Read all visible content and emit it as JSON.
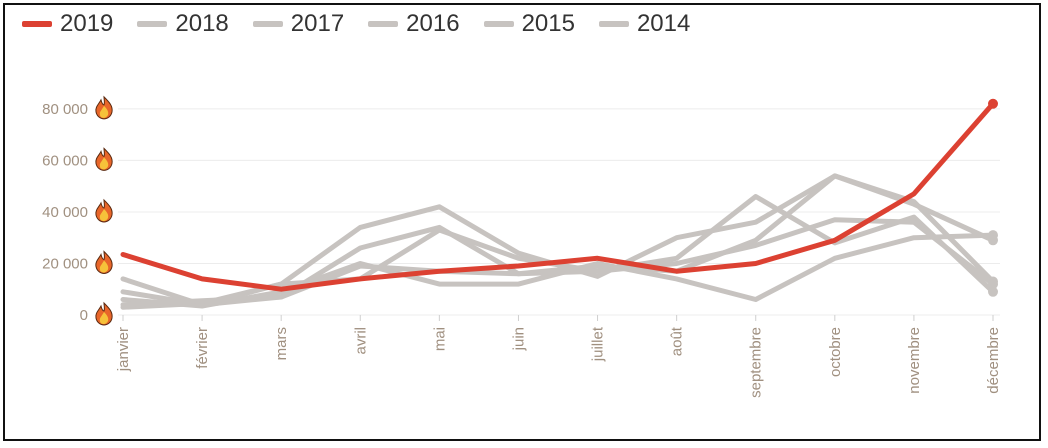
{
  "chart_data": {
    "type": "line",
    "title": "",
    "xlabel": "",
    "ylabel": "",
    "categories": [
      "janvier",
      "février",
      "mars",
      "avril",
      "mai",
      "juin",
      "juillet",
      "août",
      "septembre",
      "octobre",
      "novembre",
      "décembre"
    ],
    "y_ticks": [
      {
        "value": 0,
        "label": "0"
      },
      {
        "value": 20000,
        "label": "20 000"
      },
      {
        "value": 40000,
        "label": "40 000"
      },
      {
        "value": 60000,
        "label": "60 000"
      },
      {
        "value": 80000,
        "label": "80 000"
      }
    ],
    "ylim": [
      0,
      85000
    ],
    "grid": true,
    "legend_position": "top-left",
    "tick_icon": "fire-icon",
    "series": [
      {
        "name": "2014",
        "color": "#c7c3c0",
        "values": [
          6000,
          3500,
          9000,
          20000,
          12000,
          12000,
          20000,
          14000,
          6000,
          22000,
          30000,
          31000
        ]
      },
      {
        "name": "2015",
        "color": "#c7c3c0",
        "values": [
          3000,
          4500,
          12000,
          34000,
          42000,
          24000,
          15000,
          30000,
          36000,
          54000,
          44000,
          13000
        ]
      },
      {
        "name": "2016",
        "color": "#c7c3c0",
        "values": [
          9000,
          4000,
          7000,
          26000,
          34000,
          16000,
          17000,
          22000,
          46000,
          28000,
          38000,
          9000
        ]
      },
      {
        "name": "2017",
        "color": "#c7c3c0",
        "values": [
          14000,
          4000,
          12000,
          14000,
          33000,
          22000,
          17000,
          20000,
          27000,
          37000,
          36000,
          12000
        ]
      },
      {
        "name": "2018",
        "color": "#c7c3c0",
        "values": [
          4000,
          5500,
          7000,
          19000,
          17000,
          16000,
          19000,
          17000,
          29000,
          54000,
          43000,
          29000
        ]
      },
      {
        "name": "2019",
        "color": "#dc4132",
        "values": [
          23500,
          14000,
          10000,
          14000,
          17000,
          19000,
          22000,
          17000,
          20000,
          29000,
          47000,
          82000
        ]
      }
    ]
  }
}
